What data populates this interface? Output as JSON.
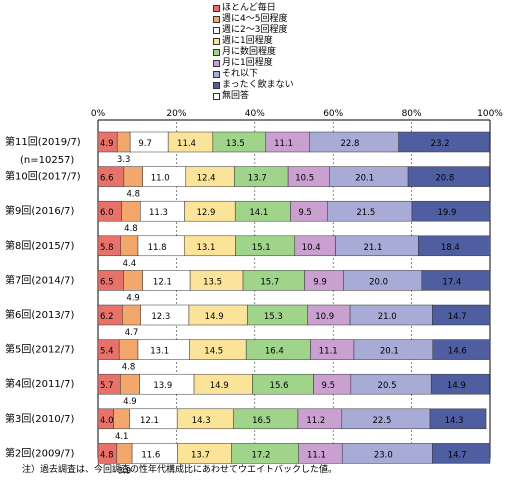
{
  "chart_data": {
    "type": "bar",
    "stacked": true,
    "orientation": "horizontal",
    "x_ticks": [
      "0%",
      "20%",
      "40%",
      "60%",
      "80%",
      "100%"
    ],
    "xlim": [
      0,
      100
    ],
    "categories": [
      "第11回(2019/7)",
      "第10回(2017/7)",
      "第9回(2016/7)",
      "第8回(2015/7)",
      "第7回(2014/7)",
      "第6回(2013/7)",
      "第5回(2012/7)",
      "第4回(2011/7)",
      "第3回(2010/7)",
      "第2回(2009/7)"
    ],
    "category_sublabel": "(n=10257)",
    "legend_placement": "top",
    "series": [
      {
        "name": "ほとんど毎日",
        "color": "#e8726a",
        "values": [
          4.9,
          6.6,
          6.0,
          5.8,
          6.5,
          6.2,
          5.4,
          5.7,
          4.0,
          4.8
        ]
      },
      {
        "name": "週に4～5回程度",
        "color": "#f2a86c",
        "values": [
          3.3,
          4.8,
          4.8,
          4.4,
          4.9,
          4.7,
          4.8,
          4.9,
          4.1,
          3.9
        ]
      },
      {
        "name": "週に2～3回程度",
        "color": "#ffffff",
        "values": [
          9.7,
          11.0,
          11.3,
          11.8,
          12.1,
          12.3,
          13.1,
          13.9,
          12.1,
          11.6
        ]
      },
      {
        "name": "週に1回程度",
        "color": "#fbe39a",
        "values": [
          11.4,
          12.4,
          12.9,
          13.1,
          13.5,
          14.9,
          14.5,
          14.9,
          14.3,
          13.7
        ]
      },
      {
        "name": "月に数回程度",
        "color": "#9fd48a",
        "values": [
          13.5,
          13.7,
          14.1,
          15.1,
          15.7,
          15.3,
          16.4,
          15.6,
          16.5,
          17.2
        ]
      },
      {
        "name": "月に1回程度",
        "color": "#c9a0d0",
        "values": [
          11.1,
          10.5,
          9.5,
          10.4,
          9.9,
          10.9,
          11.1,
          9.5,
          11.2,
          11.1
        ]
      },
      {
        "name": "それ以下",
        "color": "#a7abd6",
        "values": [
          22.8,
          20.1,
          21.5,
          21.1,
          20.0,
          21.0,
          20.1,
          20.5,
          22.5,
          23.0
        ]
      },
      {
        "name": "まったく飲まない",
        "color": "#4f5ea0",
        "values": [
          23.2,
          20.8,
          19.9,
          18.4,
          17.4,
          14.7,
          14.6,
          14.9,
          14.3,
          14.7
        ]
      },
      {
        "name": "無回答",
        "color": "#ffffff",
        "values": [
          0,
          0,
          0,
          0,
          0,
          0,
          0,
          0,
          0,
          0
        ]
      }
    ],
    "note": "注）過去調査は、今回調査の性年代構成比にあわせてウエイトバックした値。"
  }
}
